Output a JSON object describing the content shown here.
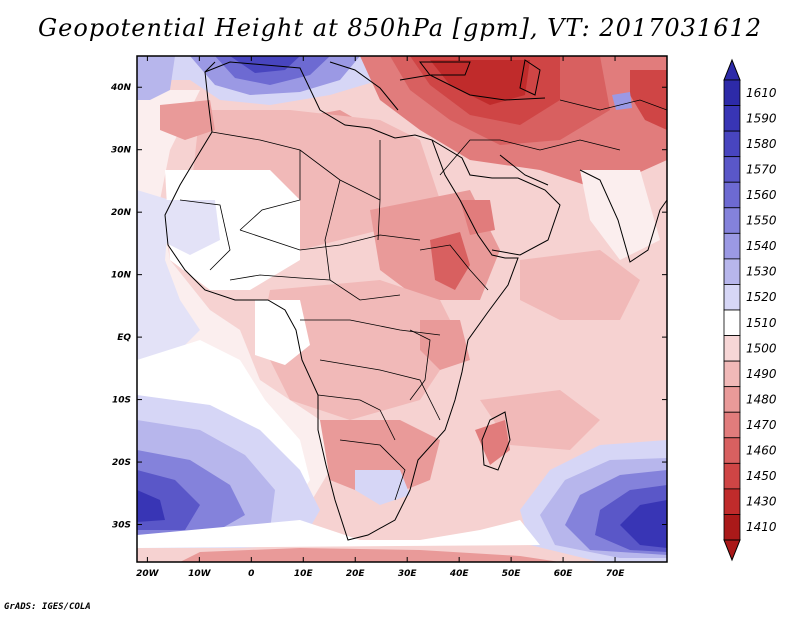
{
  "title": "Geopotential Height at 850hPa [gpm], VT: 2017031612",
  "credit": "GrADS: IGES/COLA",
  "axes": {
    "lat_labels": [
      "40N",
      "30N",
      "20N",
      "10N",
      "EQ",
      "10S",
      "20S",
      "30S"
    ],
    "lat_values": [
      40,
      30,
      20,
      10,
      0,
      -10,
      -20,
      -30
    ],
    "lon_labels": [
      "20W",
      "10W",
      "0",
      "10E",
      "20E",
      "30E",
      "40E",
      "50E",
      "60E",
      "70E"
    ],
    "lon_values": [
      -20,
      -10,
      0,
      10,
      20,
      30,
      40,
      50,
      60,
      70
    ],
    "lat_range": [
      -36,
      45
    ],
    "lon_range": [
      -22,
      80
    ]
  },
  "colorbar": {
    "levels": [
      "1610",
      "1590",
      "1580",
      "1570",
      "1560",
      "1550",
      "1540",
      "1530",
      "1520",
      "1510",
      "1500",
      "1490",
      "1480",
      "1470",
      "1460",
      "1450",
      "1430",
      "1410"
    ],
    "colors": [
      "#2d2aa8",
      "#3835b5",
      "#4845bf",
      "#5a57c8",
      "#6d6ad2",
      "#8482db",
      "#9b99e4",
      "#b7b6ec",
      "#d6d6f6",
      "#ffffff",
      "#f7d6d6",
      "#f1b9b8",
      "#e99a99",
      "#e17c7c",
      "#d86060",
      "#cf4545",
      "#c02b2b",
      "#aa1919"
    ]
  }
}
